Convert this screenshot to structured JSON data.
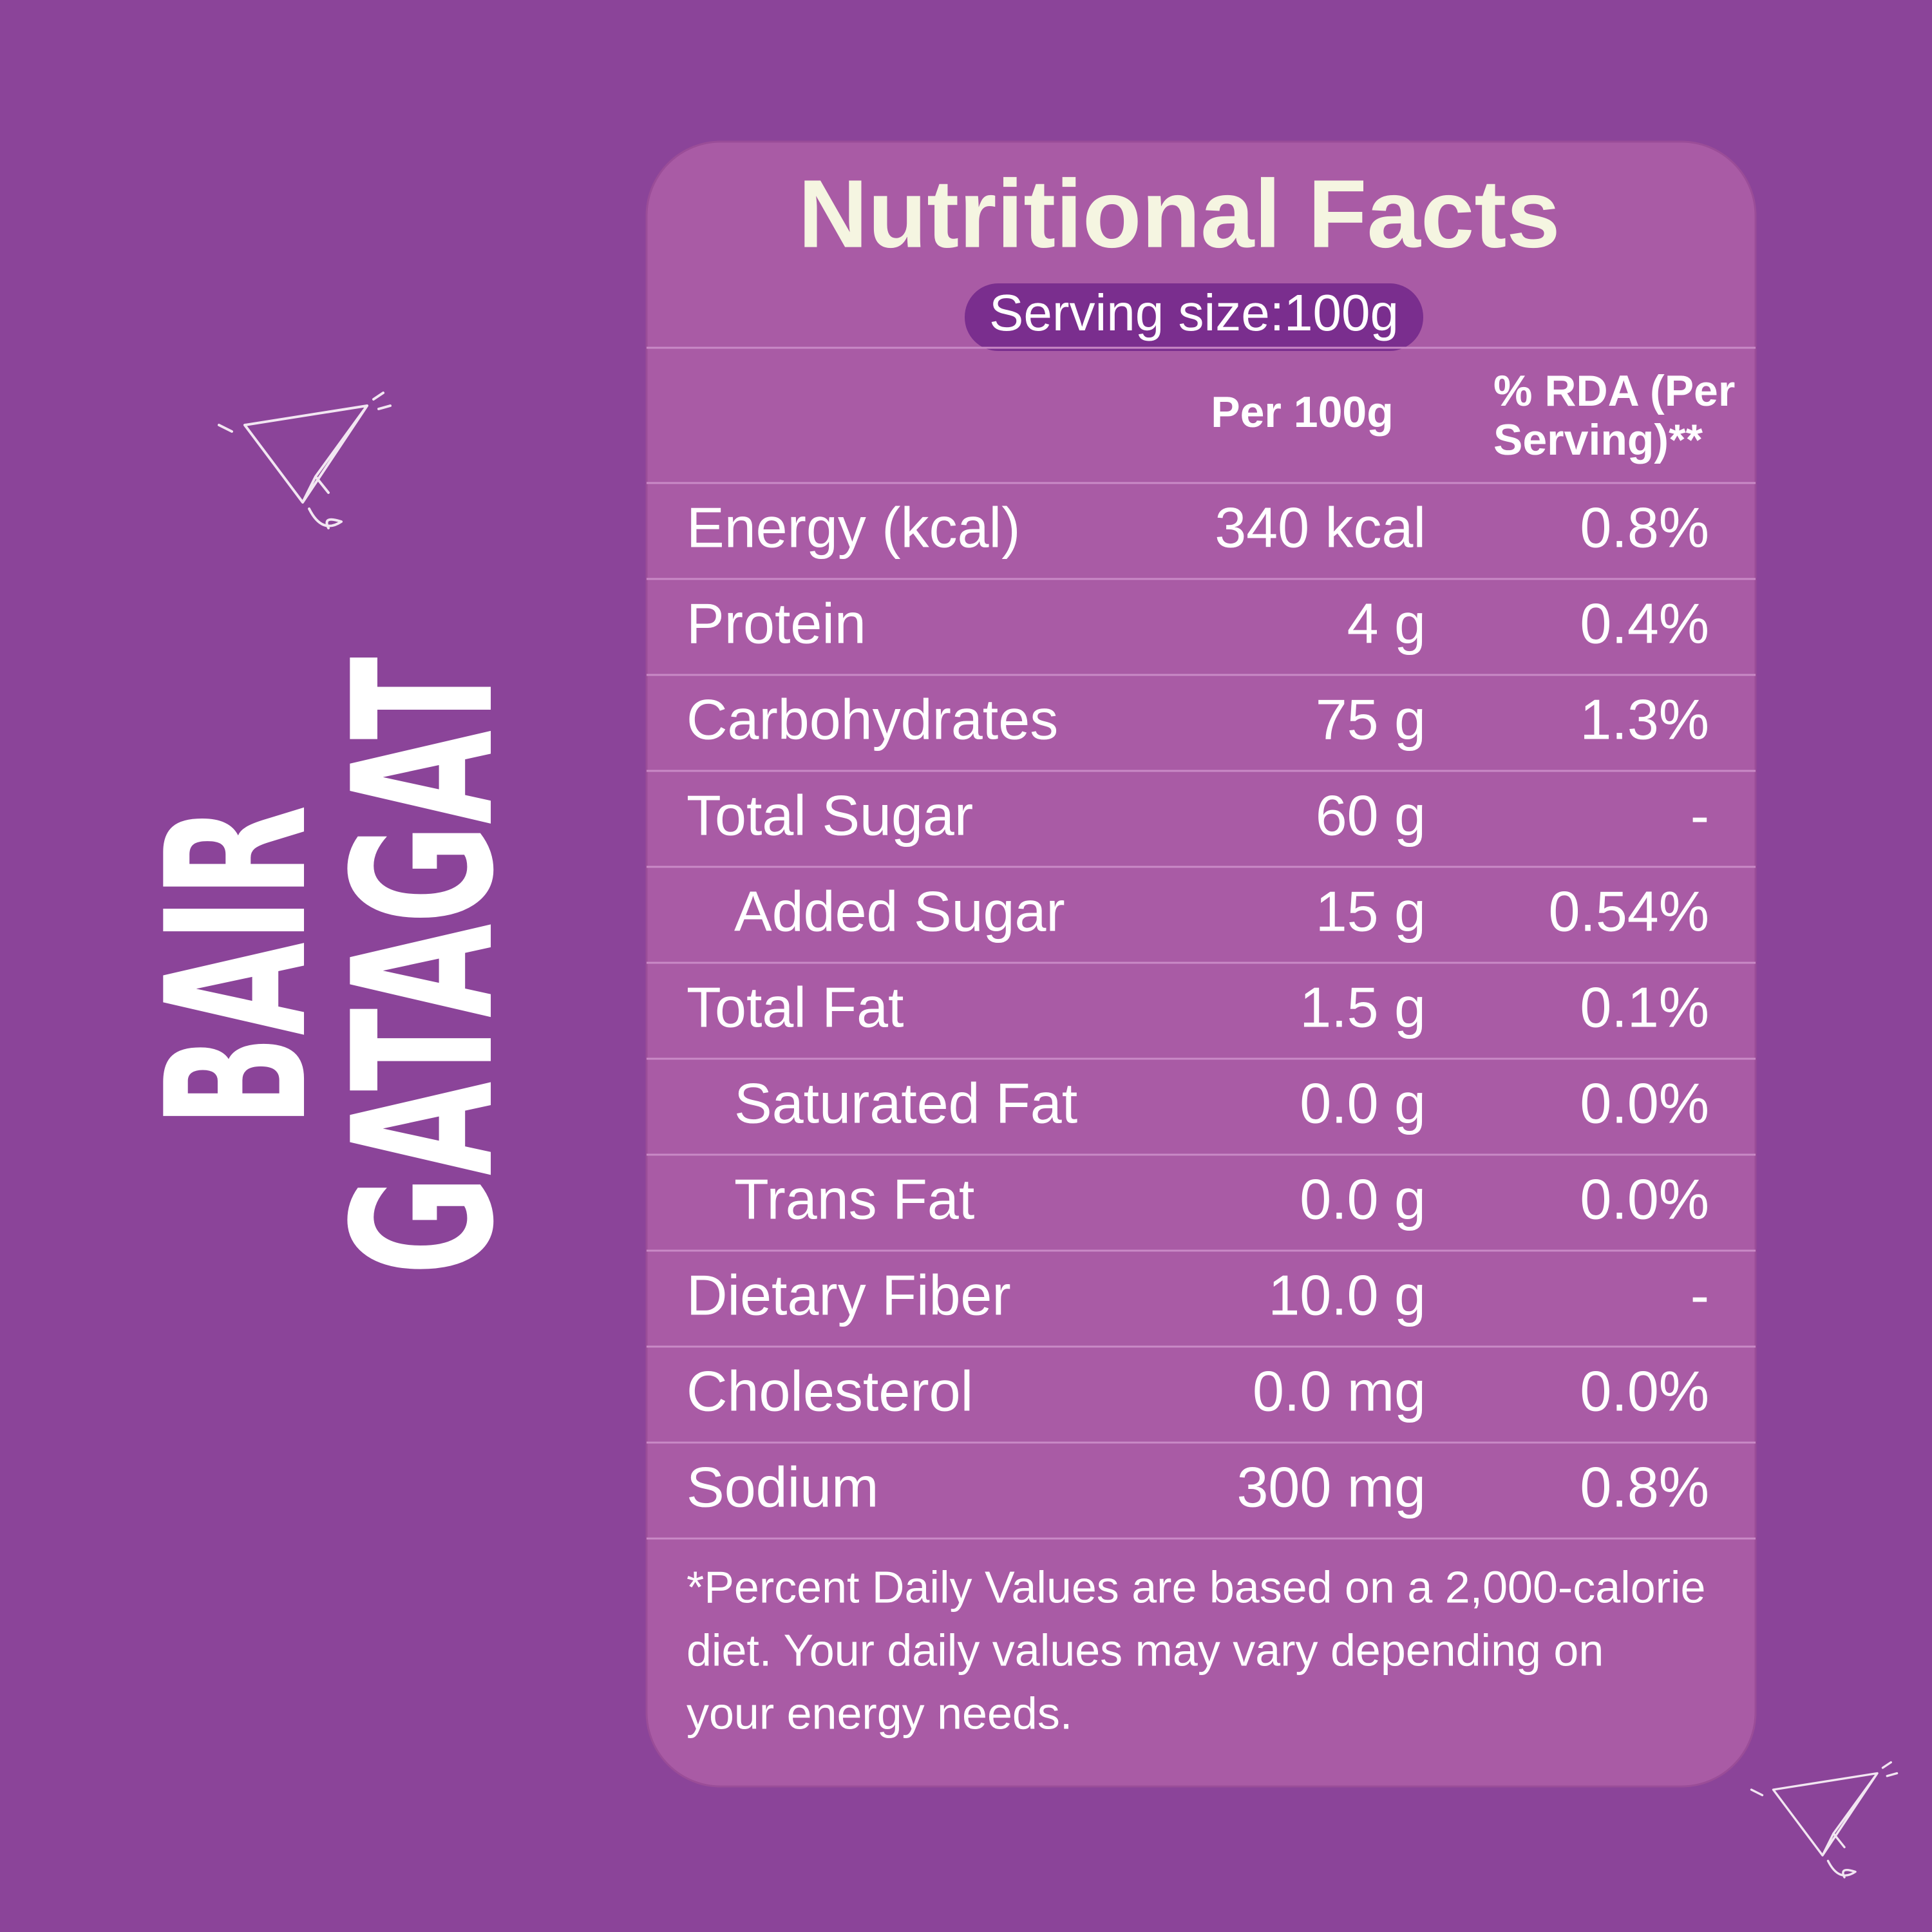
{
  "brand": {
    "line1": "BAIR",
    "line2": "GATAGAT"
  },
  "header": {
    "title": "Nutritional Facts",
    "serving_size": "Serving size:100g"
  },
  "table": {
    "columns": [
      "Per 100g",
      "% RDA (Per",
      "Serving)**"
    ],
    "rows": [
      [
        "Energy (kcal)",
        "340 kcal",
        "0.8%"
      ],
      [
        "Protein",
        "4 g",
        "0.4%"
      ],
      [
        "Carbohydrates",
        "75 g",
        "1.3%"
      ],
      [
        "Total Sugar",
        "60 g",
        "-"
      ],
      [
        "Added Sugar",
        "15 g",
        "0.54%"
      ],
      [
        "Total Fat",
        "1.5 g",
        "0.1%"
      ],
      [
        "Saturated Fat",
        "0.0 g",
        "0.0%"
      ],
      [
        "Trans Fat",
        "0.0 g",
        "0.0%"
      ],
      [
        "Dietary Fiber",
        "10.0 g",
        "-"
      ],
      [
        "Cholesterol",
        "0.0 mg",
        "0.0%"
      ],
      [
        "Sodium",
        "300 mg",
        "0.8%"
      ]
    ]
  },
  "footnote": [
    "*Percent Daily Values are based on a 2,000-calorie",
    "diet. Your daily values may vary depending on",
    "your energy needs."
  ]
}
